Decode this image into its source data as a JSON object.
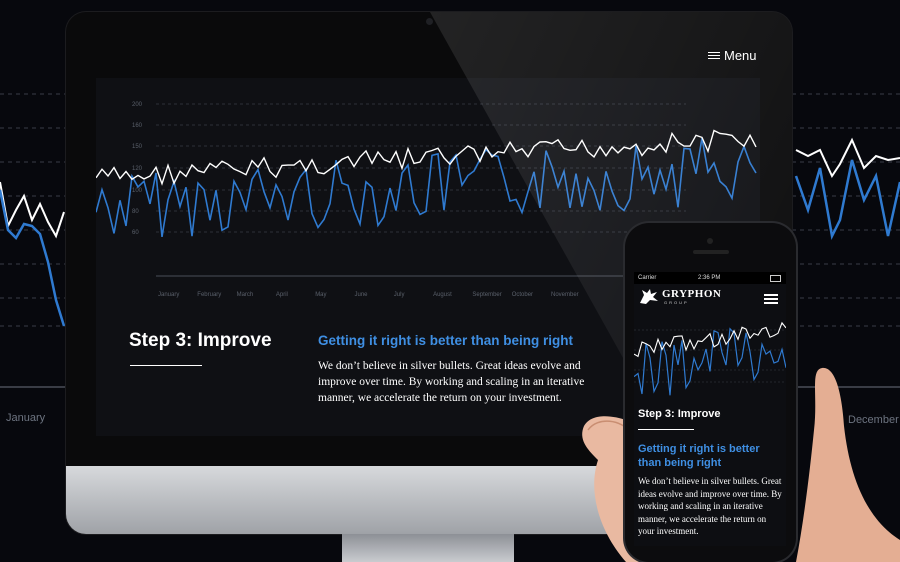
{
  "background": {
    "left_label": "January",
    "right_label": "December"
  },
  "desktop": {
    "menu_label": "Menu",
    "chart": {
      "y_ticks": [
        "200",
        "160",
        "150",
        "120",
        "100",
        "80",
        "60"
      ],
      "x_ticks": [
        "January",
        "February",
        "March",
        "April",
        "May",
        "June",
        "July",
        "August",
        "September",
        "October",
        "November"
      ]
    },
    "step_title": "Step 3: Improve",
    "subheading": "Getting it right is better than being right",
    "body": "We don’t believe in silver bullets. Great ideas evolve and improve over time. By working and scaling in an iterative manner, we accelerate the return on your investment."
  },
  "phone": {
    "status": {
      "carrier": "Carrier",
      "time": "2:36 PM"
    },
    "logo": "GRYPHON",
    "logo_sub": "GROUP",
    "step_title": "Step 3: Improve",
    "subheading": "Getting it right is better than being right",
    "body": "We don’t believe in silver bullets. Great ideas evolve and improve over time. By working and scaling in an iterative manner, we accelerate the return on your investment."
  },
  "colors": {
    "accent": "#3f8fe3",
    "background": "#07080d",
    "series_white": "#ffffff",
    "series_blue": "#2f7ad0"
  }
}
